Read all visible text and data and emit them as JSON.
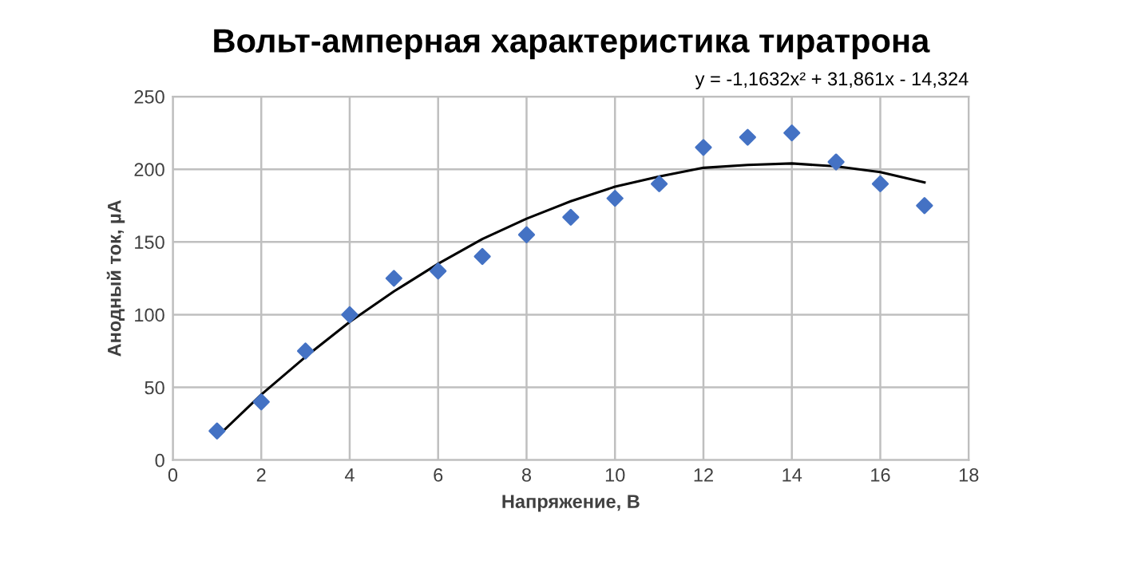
{
  "chart_data": {
    "type": "scatter",
    "title": "Вольт-амперная характеристика тиратрона",
    "xlabel": "Напряжение, В",
    "ylabel": "Анодный ток, µА",
    "x": [
      1,
      2,
      3,
      4,
      5,
      6,
      7,
      8,
      9,
      10,
      11,
      12,
      13,
      14,
      15,
      16,
      17
    ],
    "series": [
      {
        "color": "#4472c4",
        "marker": "diamond",
        "values": [
          20,
          40,
          75,
          100,
          125,
          130,
          140,
          155,
          167,
          180,
          190,
          215,
          222,
          225,
          205,
          190,
          175
        ]
      },
      {
        "type": "line",
        "color": "#000000",
        "marker": "none",
        "x": [
          1,
          2,
          3,
          4,
          5,
          6,
          7,
          8,
          9,
          10,
          11,
          12,
          13,
          14,
          15,
          16,
          17
        ],
        "values": [
          16,
          45,
          71,
          95,
          116,
          135,
          152,
          166,
          178,
          188,
          195,
          201,
          203,
          204,
          202,
          198,
          191
        ]
      }
    ],
    "annotations": [
      "y = -1,1632x² + 31,861x - 14,324"
    ],
    "xlim": [
      0,
      18
    ],
    "xticks": [
      0,
      2,
      4,
      6,
      8,
      10,
      12,
      14,
      16,
      18
    ],
    "ylim": [
      0,
      250
    ],
    "yticks": [
      0,
      50,
      100,
      150,
      200,
      250
    ],
    "grid": true
  }
}
